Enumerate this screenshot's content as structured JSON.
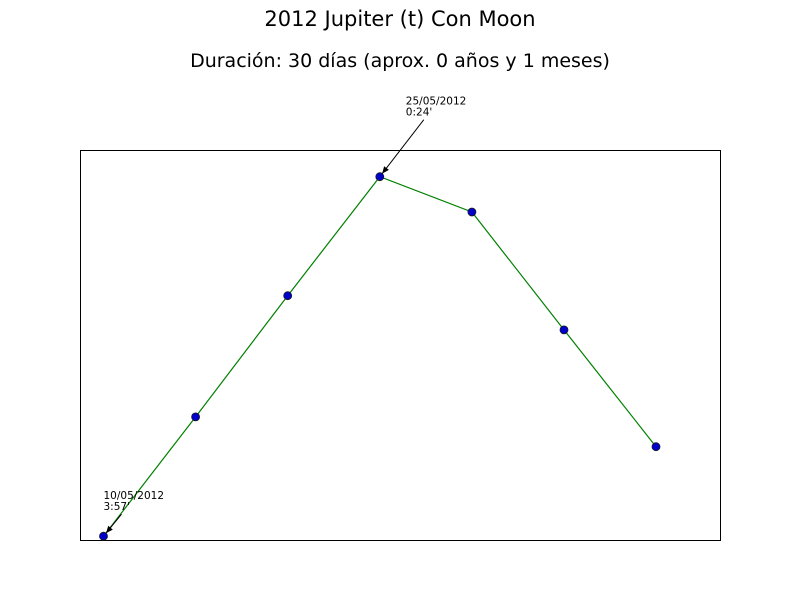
{
  "chart_data": {
    "type": "line",
    "title": "2012 Jupiter (t) Con Moon",
    "subtitle": "Duración: 30 días (aprox. 0 años y 1 meses)",
    "xlabel": "",
    "ylabel": "",
    "grid": false,
    "series": [
      {
        "color": "#008000",
        "marker_color": "#0000cc",
        "points": [
          {
            "x": 0,
            "y": 0.0
          },
          {
            "x": 1,
            "y": 0.332
          },
          {
            "x": 2,
            "y": 0.669
          },
          {
            "x": 3,
            "y": 1.0
          },
          {
            "x": 4,
            "y": 0.902
          },
          {
            "x": 5,
            "y": 0.574
          },
          {
            "x": 6,
            "y": 0.249
          }
        ]
      }
    ],
    "xlim": [
      -0.25,
      6.7
    ],
    "ylim": [
      -0.012,
      1.073
    ],
    "annotations": [
      {
        "point_index": 0,
        "line1": "10/05/2012",
        "line2": "3:57'"
      },
      {
        "point_index": 3,
        "line1": "25/05/2012",
        "line2": "0:24'"
      }
    ]
  }
}
